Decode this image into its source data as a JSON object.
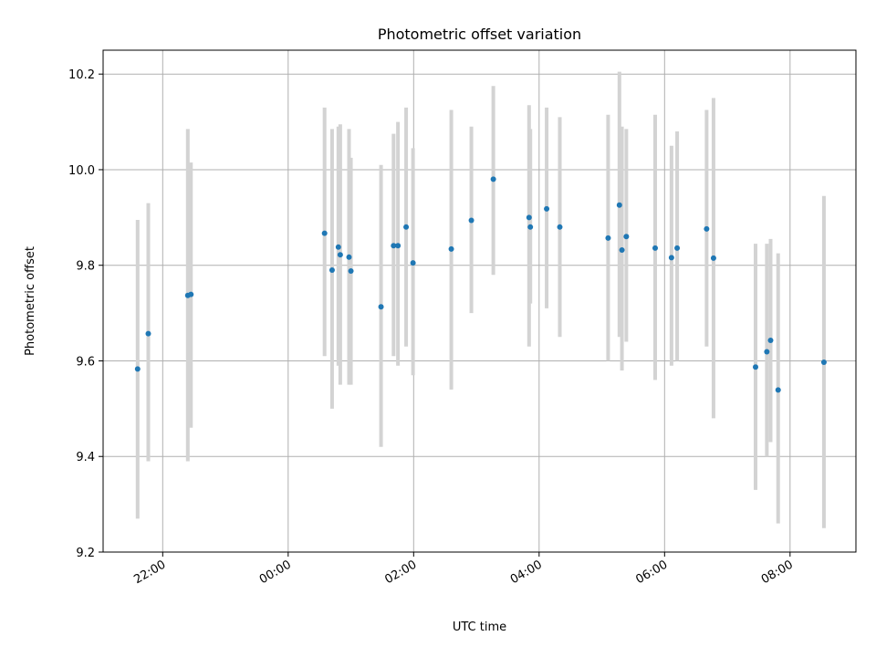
{
  "chart_data": {
    "type": "scatter",
    "title": "Photometric offset variation",
    "xlabel": "UTC time",
    "ylabel": "Photometric offset",
    "x_unit": "hours (UTC, relative to 00:00)",
    "xlim": [
      -2.95,
      9.05
    ],
    "ylim": [
      9.2,
      10.25
    ],
    "x_ticks": [
      -2,
      0,
      2,
      4,
      6,
      8
    ],
    "x_tick_labels": [
      "22:00",
      "00:00",
      "02:00",
      "04:00",
      "06:00",
      "08:00"
    ],
    "y_ticks": [
      9.2,
      9.4,
      9.6,
      9.8,
      10.0,
      10.2
    ],
    "y_tick_labels": [
      "9.2",
      "9.4",
      "9.6",
      "9.8",
      "10.0",
      "10.2"
    ],
    "grid": true,
    "error_bar_color": "#d3d3d3",
    "point_color": "#1f77b4",
    "points": [
      {
        "t": -2.4,
        "y": 9.583,
        "lo": 9.27,
        "hi": 9.895
      },
      {
        "t": -2.23,
        "y": 9.657,
        "lo": 9.39,
        "hi": 9.93
      },
      {
        "t": -1.6,
        "y": 9.737,
        "lo": 9.39,
        "hi": 10.085
      },
      {
        "t": -1.55,
        "y": 9.739,
        "lo": 9.46,
        "hi": 10.015
      },
      {
        "t": 0.58,
        "y": 9.867,
        "lo": 9.61,
        "hi": 10.13
      },
      {
        "t": 0.7,
        "y": 9.79,
        "lo": 9.5,
        "hi": 10.085
      },
      {
        "t": 0.8,
        "y": 9.838,
        "lo": 9.59,
        "hi": 10.09
      },
      {
        "t": 0.83,
        "y": 9.822,
        "lo": 9.55,
        "hi": 10.095
      },
      {
        "t": 0.97,
        "y": 9.817,
        "lo": 9.55,
        "hi": 10.085
      },
      {
        "t": 1.0,
        "y": 9.788,
        "lo": 9.55,
        "hi": 10.025
      },
      {
        "t": 1.48,
        "y": 9.713,
        "lo": 9.42,
        "hi": 10.01
      },
      {
        "t": 1.68,
        "y": 9.841,
        "lo": 9.61,
        "hi": 10.075
      },
      {
        "t": 1.75,
        "y": 9.841,
        "lo": 9.59,
        "hi": 10.1
      },
      {
        "t": 1.88,
        "y": 9.88,
        "lo": 9.63,
        "hi": 10.13
      },
      {
        "t": 1.99,
        "y": 9.805,
        "lo": 9.57,
        "hi": 10.045
      },
      {
        "t": 2.6,
        "y": 9.834,
        "lo": 9.54,
        "hi": 10.125
      },
      {
        "t": 2.92,
        "y": 9.894,
        "lo": 9.7,
        "hi": 10.09
      },
      {
        "t": 3.27,
        "y": 9.98,
        "lo": 9.78,
        "hi": 10.175
      },
      {
        "t": 3.84,
        "y": 9.9,
        "lo": 9.63,
        "hi": 10.135
      },
      {
        "t": 3.86,
        "y": 9.88,
        "lo": 9.72,
        "hi": 10.085
      },
      {
        "t": 4.12,
        "y": 9.918,
        "lo": 9.71,
        "hi": 10.13
      },
      {
        "t": 4.33,
        "y": 9.88,
        "lo": 9.65,
        "hi": 10.11
      },
      {
        "t": 5.1,
        "y": 9.857,
        "lo": 9.6,
        "hi": 10.115
      },
      {
        "t": 5.28,
        "y": 9.926,
        "lo": 9.65,
        "hi": 10.205
      },
      {
        "t": 5.32,
        "y": 9.832,
        "lo": 9.58,
        "hi": 10.09
      },
      {
        "t": 5.39,
        "y": 9.86,
        "lo": 9.64,
        "hi": 10.085
      },
      {
        "t": 5.85,
        "y": 9.836,
        "lo": 9.56,
        "hi": 10.115
      },
      {
        "t": 6.11,
        "y": 9.816,
        "lo": 9.59,
        "hi": 10.05
      },
      {
        "t": 6.2,
        "y": 9.836,
        "lo": 9.6,
        "hi": 10.08
      },
      {
        "t": 6.67,
        "y": 9.876,
        "lo": 9.63,
        "hi": 10.125
      },
      {
        "t": 6.78,
        "y": 9.815,
        "lo": 9.48,
        "hi": 10.15
      },
      {
        "t": 7.45,
        "y": 9.587,
        "lo": 9.33,
        "hi": 9.845
      },
      {
        "t": 7.63,
        "y": 9.619,
        "lo": 9.4,
        "hi": 9.845
      },
      {
        "t": 7.69,
        "y": 9.643,
        "lo": 9.43,
        "hi": 9.855
      },
      {
        "t": 7.81,
        "y": 9.539,
        "lo": 9.26,
        "hi": 9.825
      },
      {
        "t": 8.54,
        "y": 9.597,
        "lo": 9.25,
        "hi": 9.945
      }
    ]
  }
}
